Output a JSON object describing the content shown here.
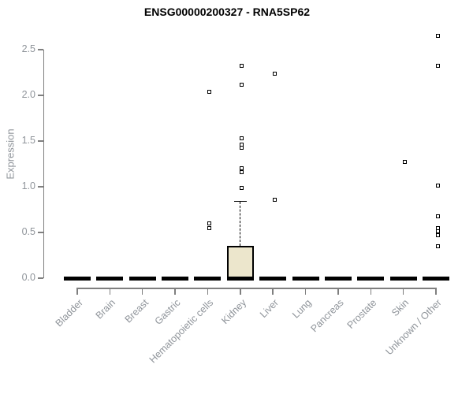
{
  "chart_data": {
    "type": "box",
    "title": "ENSG00000200327 - RNA5SP62",
    "ylabel": "Expression",
    "xlabel": "",
    "ylim": [
      0.0,
      2.5
    ],
    "grid": false,
    "legend": false,
    "yticks": [
      {
        "value": 0.0,
        "label": "0.0"
      },
      {
        "value": 0.5,
        "label": "0.5"
      },
      {
        "value": 1.0,
        "label": "1.0"
      },
      {
        "value": 1.5,
        "label": "1.5"
      },
      {
        "value": 2.0,
        "label": "2.0"
      },
      {
        "value": 2.5,
        "label": "2.5"
      }
    ],
    "categories": [
      "Bladder",
      "Brain",
      "Breast",
      "Gastric",
      "Hematopoietic cells",
      "Kidney",
      "Liver",
      "Lung",
      "Pancreas",
      "Prostate",
      "Skin",
      "Unknown / Other"
    ],
    "boxes": [
      {
        "category": "Bladder",
        "q1": 0,
        "median": 0,
        "q3": 0,
        "whisker_low": 0,
        "whisker_high": 0,
        "outliers": []
      },
      {
        "category": "Brain",
        "q1": 0,
        "median": 0,
        "q3": 0,
        "whisker_low": 0,
        "whisker_high": 0,
        "outliers": []
      },
      {
        "category": "Breast",
        "q1": 0,
        "median": 0,
        "q3": 0,
        "whisker_low": 0,
        "whisker_high": 0,
        "outliers": []
      },
      {
        "category": "Gastric",
        "q1": 0,
        "median": 0,
        "q3": 0,
        "whisker_low": 0,
        "whisker_high": 0,
        "outliers": []
      },
      {
        "category": "Hematopoietic cells",
        "q1": 0,
        "median": 0,
        "q3": 0,
        "whisker_low": 0,
        "whisker_high": 0,
        "outliers": [
          2.04,
          0.6,
          0.55
        ]
      },
      {
        "category": "Kidney",
        "q1": 0,
        "median": 0,
        "q3": 0.35,
        "whisker_low": 0,
        "whisker_high": 0.84,
        "outliers": [
          2.32,
          2.12,
          1.53,
          1.46,
          1.43,
          1.2,
          1.16,
          0.99
        ]
      },
      {
        "category": "Liver",
        "q1": 0,
        "median": 0,
        "q3": 0,
        "whisker_low": 0,
        "whisker_high": 0,
        "outliers": [
          2.24,
          0.86
        ]
      },
      {
        "category": "Lung",
        "q1": 0,
        "median": 0,
        "q3": 0,
        "whisker_low": 0,
        "whisker_high": 0,
        "outliers": []
      },
      {
        "category": "Pancreas",
        "q1": 0,
        "median": 0,
        "q3": 0,
        "whisker_low": 0,
        "whisker_high": 0,
        "outliers": []
      },
      {
        "category": "Prostate",
        "q1": 0,
        "median": 0,
        "q3": 0,
        "whisker_low": 0,
        "whisker_high": 0,
        "outliers": []
      },
      {
        "category": "Skin",
        "q1": 0,
        "median": 0,
        "q3": 0,
        "whisker_low": 0,
        "whisker_high": 0,
        "outliers": [
          1.27
        ]
      },
      {
        "category": "Unknown / Other",
        "q1": 0,
        "median": 0,
        "q3": 0,
        "whisker_low": 0,
        "whisker_high": 0,
        "outliers": [
          2.65,
          2.32,
          1.01,
          0.68,
          0.55,
          0.51,
          0.47,
          0.35
        ]
      }
    ],
    "colors": {
      "box_fill": "#ece6cc",
      "box_border": "#000000",
      "median": "#000000",
      "whisker": "#000000",
      "point_border": "#000000",
      "point_fill": "#ffffff",
      "axis": "#7f7f7f",
      "tick_label": "#8f949a",
      "title": "#000000"
    }
  }
}
